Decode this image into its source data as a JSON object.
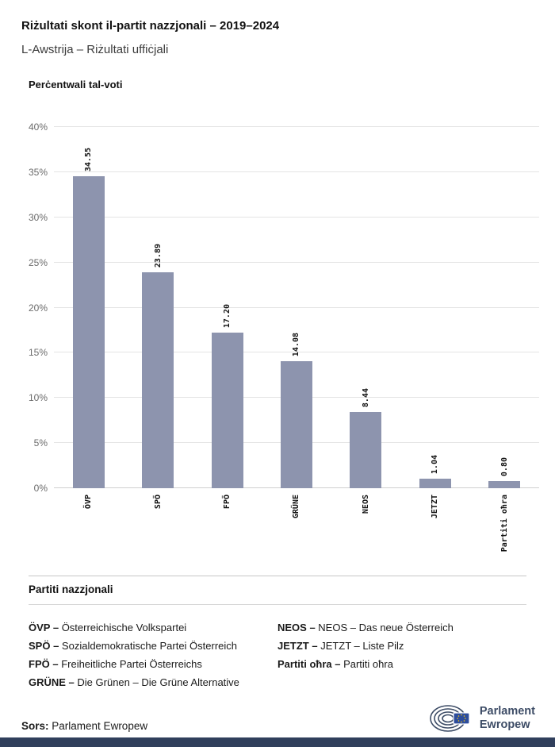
{
  "header": {
    "title": "Riżultati skont il-partit nazzjonali – 2019–2024",
    "subtitle": "L-Awstrija – Riżultati uffiċjali"
  },
  "chart": {
    "section_label": "Perċentwali tal-voti"
  },
  "chart_data": {
    "type": "bar",
    "title": "Perċentwali tal-voti",
    "categories": [
      "ÖVP",
      "SPÖ",
      "FPÖ",
      "GRÜNE",
      "NEOS",
      "JETZT",
      "Partiti oħra"
    ],
    "values": [
      34.55,
      23.89,
      17.2,
      14.08,
      8.44,
      1.04,
      0.8
    ],
    "value_labels": [
      "34.55",
      "23.89",
      "17.20",
      "14.08",
      "8.44",
      "1.04",
      "0.80"
    ],
    "xlabel": "",
    "ylabel": "Perċentwali tal-voti",
    "ylim": [
      0,
      40
    ],
    "ytick_step": 5,
    "ytick_labels": [
      "0%",
      "5%",
      "10%",
      "15%",
      "20%",
      "25%",
      "30%",
      "35%",
      "40%"
    ],
    "bar_color": "#8d94ae",
    "grid": true,
    "legend_position": "none"
  },
  "legend": {
    "heading": "Partiti nazzjonali",
    "columns": [
      [
        {
          "abbr": "ÖVP",
          "name": "Österreichische Volkspartei"
        },
        {
          "abbr": "SPÖ",
          "name": "Sozialdemokratische Partei Österreich"
        },
        {
          "abbr": "FPÖ",
          "name": "Freiheitliche Partei Österreichs"
        },
        {
          "abbr": "GRÜNE",
          "name": "Die Grünen – Die Grüne Alternative"
        }
      ],
      [
        {
          "abbr": "NEOS",
          "name": "NEOS – Das neue Österreich"
        },
        {
          "abbr": "JETZT",
          "name": "JETZT – Liste Pilz"
        },
        {
          "abbr": "Partiti oħra",
          "name": "Partiti oħra"
        }
      ]
    ]
  },
  "footer": {
    "source_label": "Sors:",
    "source_value": "Parlament Ewropew",
    "logo_line1": "Parlament",
    "logo_line2": "Ewropew"
  },
  "colors": {
    "bar": "#8d94ae",
    "footer_bar": "#303f5c",
    "logo_navy": "#3d4c66",
    "eu_flag_blue": "#2c4c9c",
    "eu_flag_stars": "#ffcc00"
  }
}
